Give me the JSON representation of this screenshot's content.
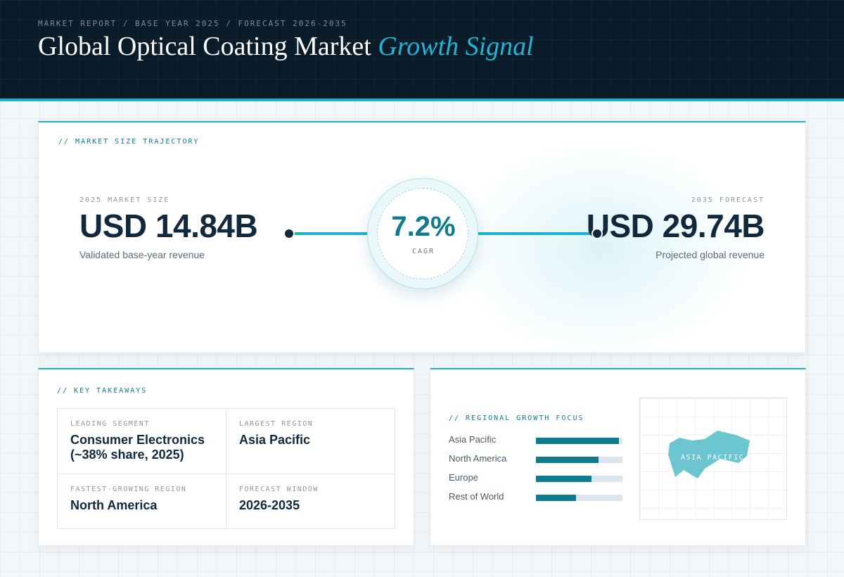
{
  "header": {
    "eyebrow": "MARKET REPORT / BASE YEAR 2025 / FORECAST 2026-2035",
    "title_main": "Global Optical Coating Market",
    "title_accent": "Growth Signal"
  },
  "trajectory": {
    "section_label": "// MARKET SIZE TRAJECTORY",
    "start": {
      "kicker": "2025 MARKET SIZE",
      "value": "USD 14.84B",
      "note": "Validated base-year revenue"
    },
    "end": {
      "kicker": "2035 FORECAST",
      "value": "USD 29.74B",
      "note": "Projected global revenue"
    },
    "cagr": {
      "value": "7.2%",
      "label": "CAGR"
    }
  },
  "takeaways": {
    "section_label": "// KEY TAKEAWAYS",
    "items": [
      {
        "key": "LEADING SEGMENT",
        "value": "Consumer Electronics (~38% share, 2025)"
      },
      {
        "key": "LARGEST REGION",
        "value": "Asia Pacific"
      },
      {
        "key": "FASTEST-GROWING REGION",
        "value": "North America"
      },
      {
        "key": "FORECAST WINDOW",
        "value": "2026-2035"
      }
    ]
  },
  "regional": {
    "section_label": "// REGIONAL GROWTH FOCUS",
    "bars": [
      {
        "name": "Asia Pacific",
        "level": 0.96
      },
      {
        "name": "North America",
        "level": 0.72
      },
      {
        "name": "Europe",
        "level": 0.64
      },
      {
        "name": "Rest of World",
        "level": 0.46
      }
    ],
    "map_label": "ASIA PACIFIC",
    "accent_color": "#0e7c8e",
    "map_color": "#6cc6d2"
  }
}
